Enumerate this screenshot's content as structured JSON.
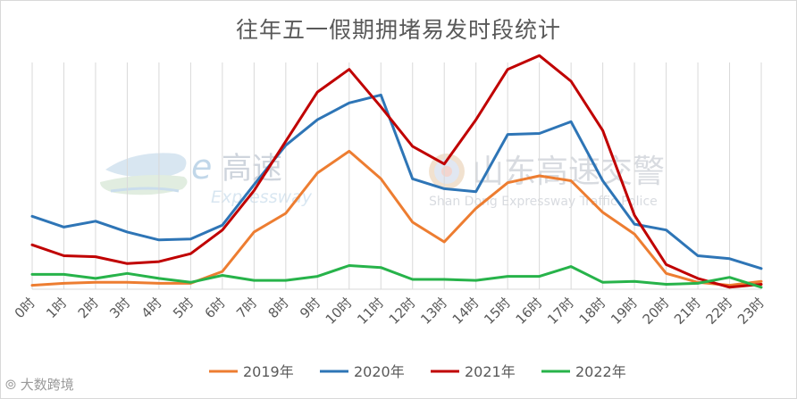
{
  "chart_data": {
    "type": "line",
    "title": "往年五一假期拥堵易发时段统计",
    "xlabel": "",
    "ylabel": "",
    "categories": [
      "0时",
      "1时",
      "2时",
      "3时",
      "4时",
      "5时",
      "6时",
      "7时",
      "8时",
      "9时",
      "10时",
      "11时",
      "12时",
      "13时",
      "14时",
      "15时",
      "16时",
      "17时",
      "18时",
      "19时",
      "20时",
      "21时",
      "22时",
      "23时"
    ],
    "ylim": [
      0,
      230
    ],
    "grid": "vertical",
    "legend_position": "bottom",
    "series": [
      {
        "name": "2019年",
        "color": "#ed7d31",
        "values": [
          4,
          6,
          7,
          7,
          6,
          6,
          18,
          58,
          77,
          118,
          140,
          112,
          68,
          48,
          82,
          108,
          115,
          110,
          78,
          56,
          16,
          7,
          4,
          8
        ]
      },
      {
        "name": "2020年",
        "color": "#2e75b6",
        "values": [
          74,
          63,
          69,
          58,
          50,
          51,
          65,
          106,
          146,
          172,
          189,
          197,
          112,
          102,
          99,
          157,
          158,
          170,
          110,
          66,
          60,
          34,
          31,
          21
        ]
      },
      {
        "name": "2021年",
        "color": "#c00000",
        "values": [
          45,
          34,
          33,
          26,
          28,
          36,
          60,
          100,
          150,
          200,
          223,
          185,
          145,
          127,
          172,
          223,
          237,
          211,
          161,
          75,
          25,
          11,
          2,
          5
        ]
      },
      {
        "name": "2022年",
        "color": "#27b34a",
        "values": [
          15,
          15,
          11,
          16,
          11,
          7,
          14,
          9,
          9,
          13,
          24,
          22,
          10,
          10,
          9,
          13,
          13,
          23,
          7,
          8,
          5,
          6,
          12,
          2
        ]
      }
    ]
  },
  "watermarks": {
    "left_brand": "高速",
    "left_brand_sub": "Expressway",
    "right_brand": "山东高速交警",
    "right_brand_sub": "Shan Dong Expressway Traffic Police",
    "corner": "大数跨境"
  },
  "colors": {
    "grid": "#d9d9d9",
    "axis": "#d9d9d9",
    "watermark": "#c7cdd6"
  }
}
